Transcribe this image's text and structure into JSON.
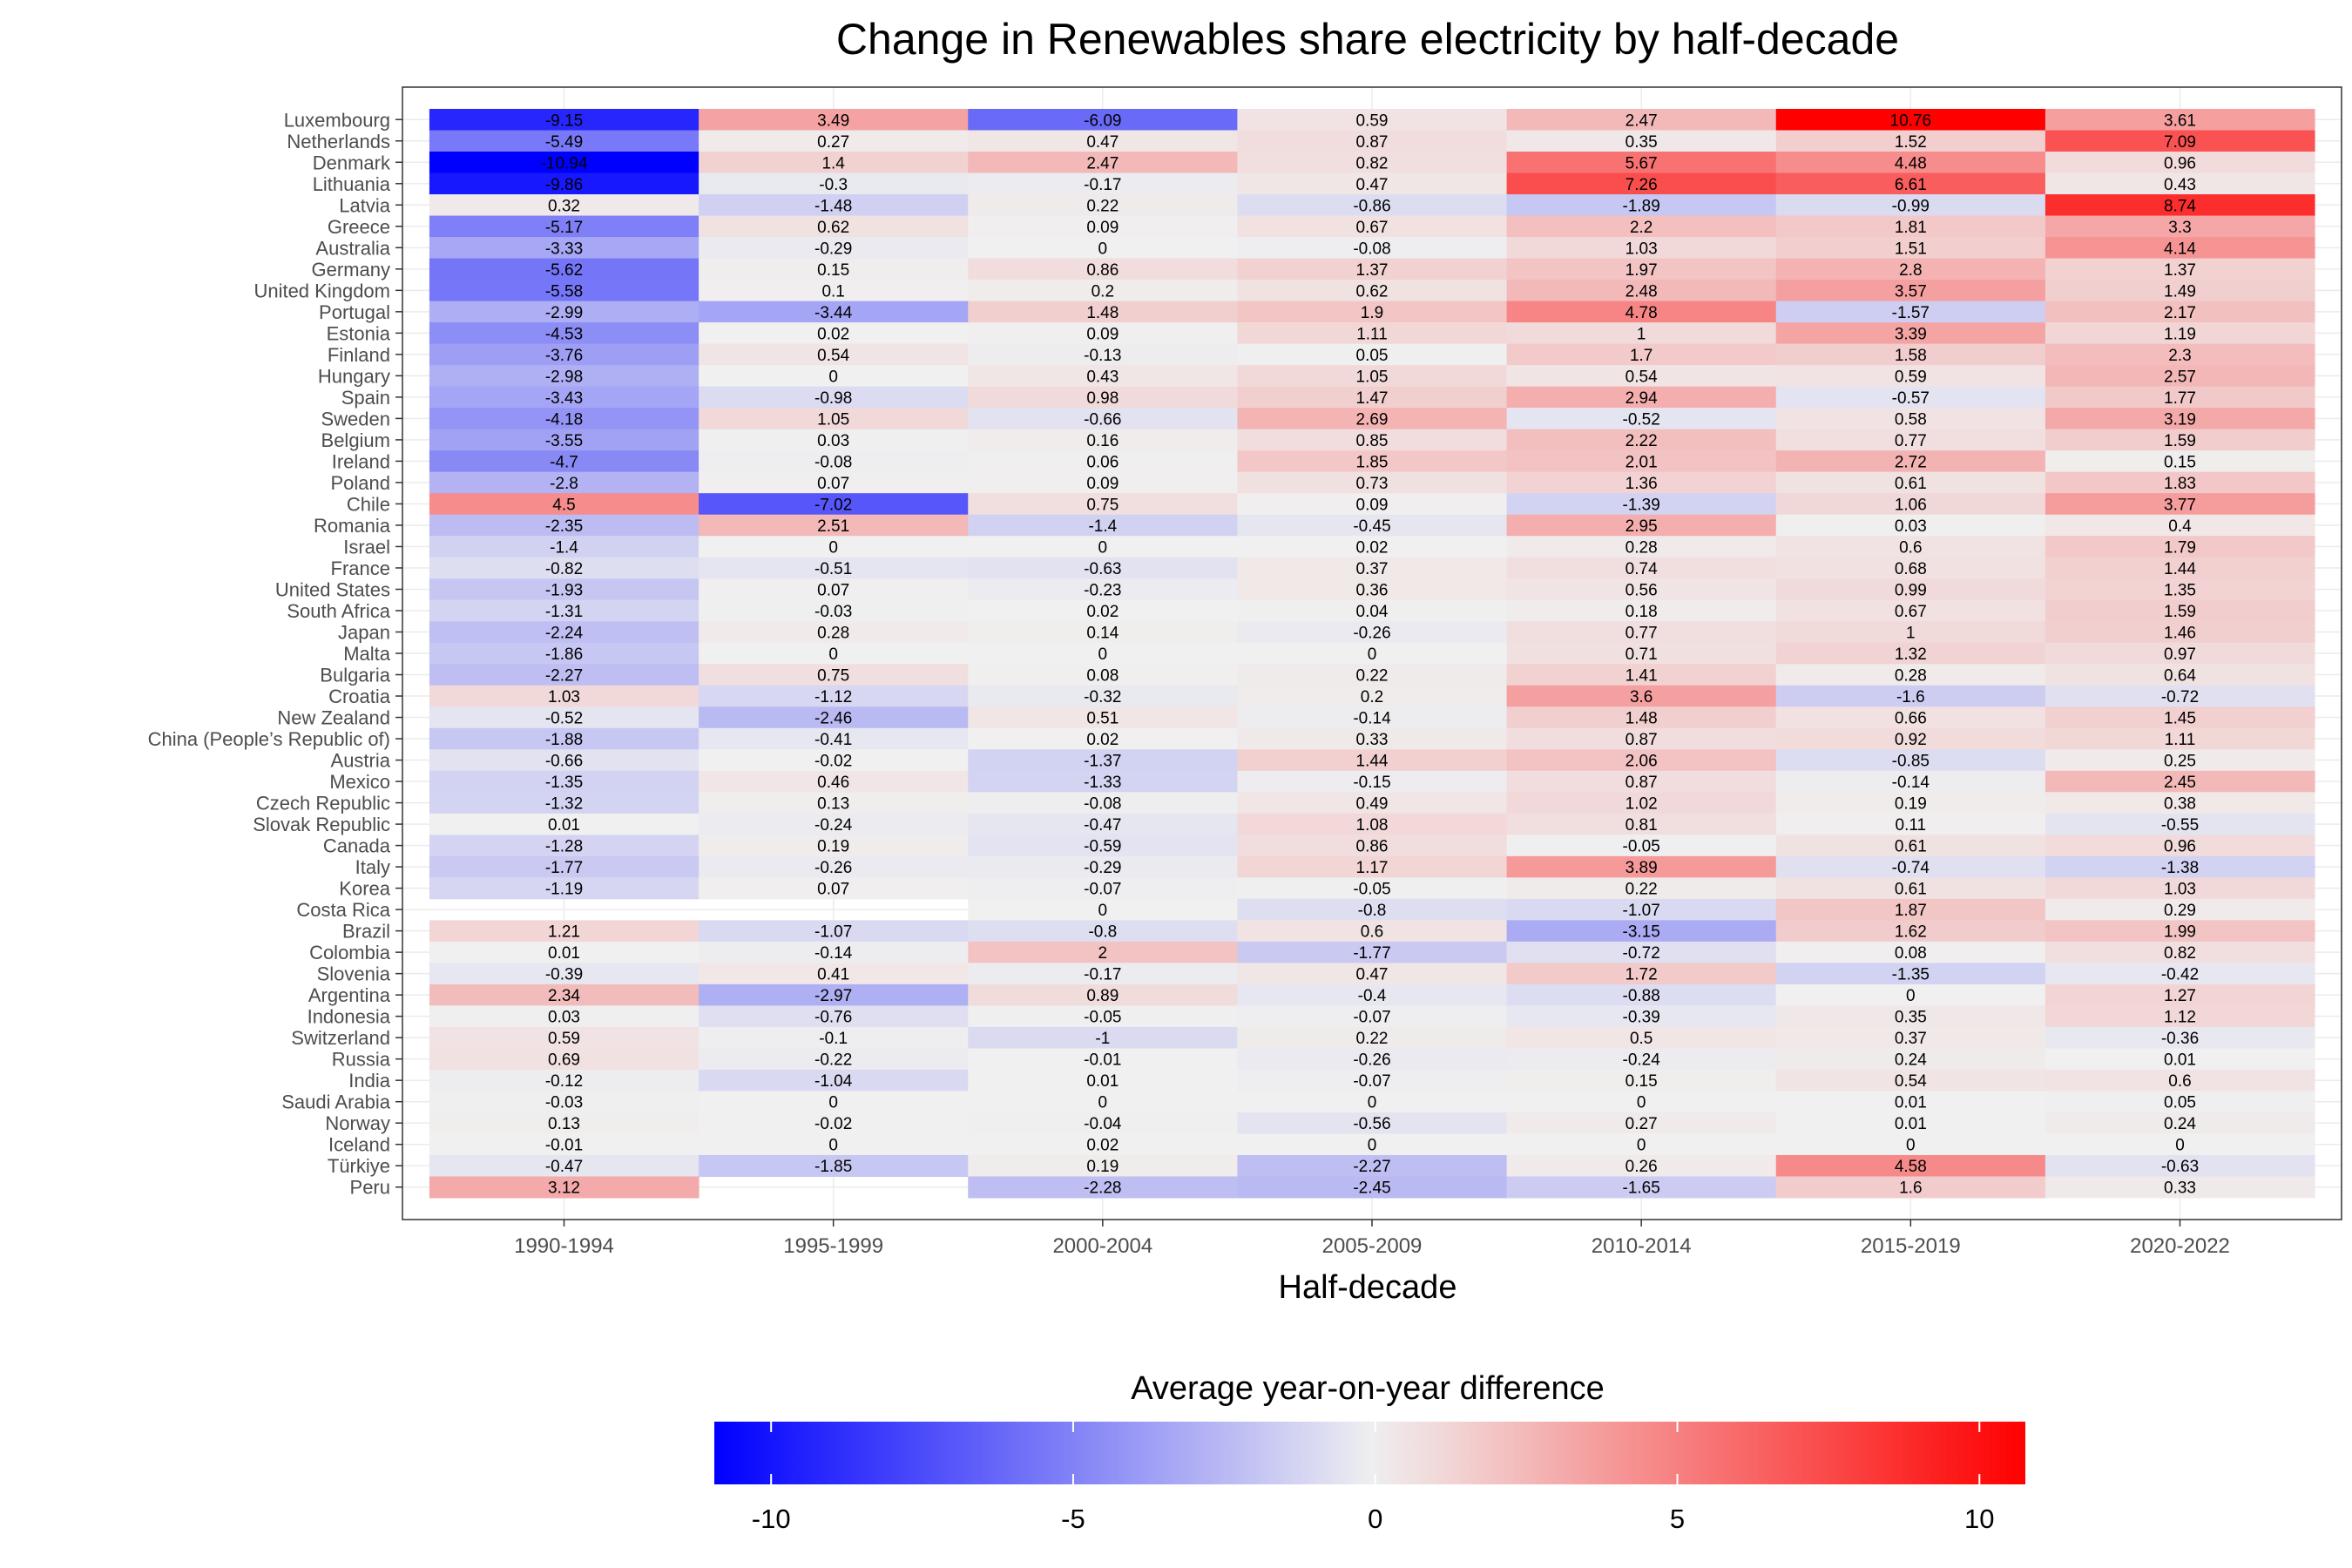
{
  "chart_data": {
    "type": "heatmap",
    "title": "Change in Renewables share electricity by half-decade",
    "xlabel": "Half-decade",
    "ylabel": "",
    "x": [
      "1990-1994",
      "1995-1999",
      "2000-2004",
      "2005-2009",
      "2010-2014",
      "2015-2019",
      "2020-2022"
    ],
    "y": [
      "Luxembourg",
      "Netherlands",
      "Denmark",
      "Lithuania",
      "Latvia",
      "Greece",
      "Australia",
      "Germany",
      "United Kingdom",
      "Portugal",
      "Estonia",
      "Finland",
      "Hungary",
      "Spain",
      "Sweden",
      "Belgium",
      "Ireland",
      "Poland",
      "Chile",
      "Romania",
      "Israel",
      "France",
      "United States",
      "South Africa",
      "Japan",
      "Malta",
      "Bulgaria",
      "Croatia",
      "New Zealand",
      "China (People’s Republic of)",
      "Austria",
      "Mexico",
      "Czech Republic",
      "Slovak Republic",
      "Canada",
      "Italy",
      "Korea",
      "Costa Rica",
      "Brazil",
      "Colombia",
      "Slovenia",
      "Argentina",
      "Indonesia",
      "Switzerland",
      "Russia",
      "India",
      "Saudi Arabia",
      "Norway",
      "Iceland",
      "Türkiye",
      "Peru"
    ],
    "values": [
      [
        -9.15,
        3.49,
        -6.09,
        0.59,
        2.47,
        10.76,
        3.61
      ],
      [
        -5.49,
        0.27,
        0.47,
        0.87,
        0.35,
        1.52,
        7.09
      ],
      [
        -10.94,
        1.4,
        2.47,
        0.82,
        5.67,
        4.48,
        0.96
      ],
      [
        -9.86,
        -0.3,
        -0.17,
        0.47,
        7.26,
        6.61,
        0.43
      ],
      [
        0.32,
        -1.48,
        0.22,
        -0.86,
        -1.89,
        -0.99,
        8.74
      ],
      [
        -5.17,
        0.62,
        0.09,
        0.67,
        2.2,
        1.81,
        3.3
      ],
      [
        -3.33,
        -0.29,
        0,
        -0.08,
        1.03,
        1.51,
        4.14
      ],
      [
        -5.62,
        0.15,
        0.86,
        1.37,
        1.97,
        2.8,
        1.37
      ],
      [
        -5.58,
        0.1,
        0.2,
        0.62,
        2.48,
        3.57,
        1.49
      ],
      [
        -2.99,
        -3.44,
        1.48,
        1.9,
        4.78,
        -1.57,
        2.17
      ],
      [
        -4.53,
        0.02,
        0.09,
        1.11,
        1,
        3.39,
        1.19
      ],
      [
        -3.76,
        0.54,
        -0.13,
        0.05,
        1.7,
        1.58,
        2.3
      ],
      [
        -2.98,
        0,
        0.43,
        1.05,
        0.54,
        0.59,
        2.57
      ],
      [
        -3.43,
        -0.98,
        0.98,
        1.47,
        2.94,
        -0.57,
        1.77
      ],
      [
        -4.18,
        1.05,
        -0.66,
        2.69,
        -0.52,
        0.58,
        3.19
      ],
      [
        -3.55,
        0.03,
        0.16,
        0.85,
        2.22,
        0.77,
        1.59
      ],
      [
        -4.7,
        -0.08,
        0.06,
        1.85,
        2.01,
        2.72,
        0.15
      ],
      [
        -2.8,
        0.07,
        0.09,
        0.73,
        1.36,
        0.61,
        1.83
      ],
      [
        4.5,
        -7.02,
        0.75,
        0.09,
        -1.39,
        1.06,
        3.77
      ],
      [
        -2.35,
        2.51,
        -1.4,
        -0.45,
        2.95,
        0.03,
        0.4
      ],
      [
        -1.4,
        0,
        0,
        0.02,
        0.28,
        0.6,
        1.79
      ],
      [
        -0.82,
        -0.51,
        -0.63,
        0.37,
        0.74,
        0.68,
        1.44
      ],
      [
        -1.93,
        0.07,
        -0.23,
        0.36,
        0.56,
        0.99,
        1.35
      ],
      [
        -1.31,
        -0.03,
        0.02,
        0.04,
        0.18,
        0.67,
        1.59
      ],
      [
        -2.24,
        0.28,
        0.14,
        -0.26,
        0.77,
        1,
        1.46
      ],
      [
        -1.86,
        0,
        0,
        0,
        0.71,
        1.32,
        0.97
      ],
      [
        -2.27,
        0.75,
        0.08,
        0.22,
        1.41,
        0.28,
        0.64
      ],
      [
        1.03,
        -1.12,
        -0.32,
        0.2,
        3.6,
        -1.6,
        -0.72
      ],
      [
        -0.52,
        -2.46,
        0.51,
        -0.14,
        1.48,
        0.66,
        1.45
      ],
      [
        -1.88,
        -0.41,
        0.02,
        0.33,
        0.87,
        0.92,
        1.11
      ],
      [
        -0.66,
        -0.02,
        -1.37,
        1.44,
        2.06,
        -0.85,
        0.25
      ],
      [
        -1.35,
        0.46,
        -1.33,
        -0.15,
        0.87,
        -0.14,
        2.45
      ],
      [
        -1.32,
        0.13,
        -0.08,
        0.49,
        1.02,
        0.19,
        0.38
      ],
      [
        0.01,
        -0.24,
        -0.47,
        1.08,
        0.81,
        0.11,
        -0.55
      ],
      [
        -1.28,
        0.19,
        -0.59,
        0.86,
        -0.05,
        0.61,
        0.96
      ],
      [
        -1.77,
        -0.26,
        -0.29,
        1.17,
        3.89,
        -0.74,
        -1.38
      ],
      [
        -1.19,
        0.07,
        -0.07,
        -0.05,
        0.22,
        0.61,
        1.03
      ],
      [
        null,
        null,
        0,
        -0.8,
        -1.07,
        1.87,
        0.29
      ],
      [
        1.21,
        -1.07,
        -0.8,
        0.6,
        -3.15,
        1.62,
        1.99
      ],
      [
        0.01,
        -0.14,
        2,
        -1.77,
        -0.72,
        0.08,
        0.82
      ],
      [
        -0.39,
        0.41,
        -0.17,
        0.47,
        1.72,
        -1.35,
        -0.42
      ],
      [
        2.34,
        -2.97,
        0.89,
        -0.4,
        -0.88,
        0,
        1.27
      ],
      [
        0.03,
        -0.76,
        -0.05,
        -0.07,
        -0.39,
        0.35,
        1.12
      ],
      [
        0.59,
        -0.1,
        -1,
        0.22,
        0.5,
        0.37,
        -0.36
      ],
      [
        0.69,
        -0.22,
        -0.01,
        -0.26,
        -0.24,
        0.24,
        0.01
      ],
      [
        -0.12,
        -1.04,
        0.01,
        -0.07,
        0.15,
        0.54,
        0.6
      ],
      [
        -0.03,
        0,
        0,
        0,
        0,
        0.01,
        0.05
      ],
      [
        0.13,
        -0.02,
        -0.04,
        -0.56,
        0.27,
        0.01,
        0.24
      ],
      [
        -0.01,
        0,
        0.02,
        0,
        0,
        0,
        0
      ],
      [
        -0.47,
        -1.85,
        0.19,
        -2.27,
        0.26,
        4.58,
        -0.63
      ],
      [
        3.12,
        null,
        -2.28,
        -2.45,
        -1.65,
        1.6,
        0.33
      ]
    ],
    "legend": {
      "title": "Average year-on-year difference",
      "position": "bottom",
      "ticks": [
        -10,
        -5,
        0,
        5,
        10
      ],
      "min": -10.94,
      "max": 10.76
    },
    "colors": {
      "low": "#0000ff",
      "mid": "#f0f0f0",
      "high": "#ff0000",
      "missing": "#ffffff"
    },
    "grid": true
  }
}
